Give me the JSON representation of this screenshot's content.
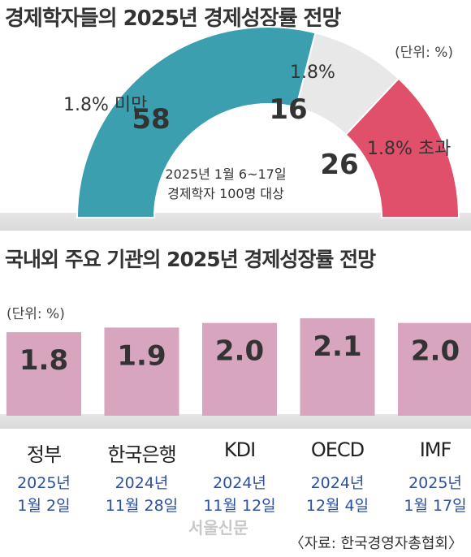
{
  "chart_data": [
    {
      "type": "pie",
      "title": "경제학자들의 2025년 경제성장률 전망",
      "unit": "(단위: %)",
      "note_lines": [
        "2025년 1월 6~17일",
        "경제학자 100명 대상"
      ],
      "slices": [
        {
          "label": "1.8% 미만",
          "value": 58,
          "color": "#3b9fb0"
        },
        {
          "label": "1.8%",
          "value": 16,
          "color": "#e8e8e8"
        },
        {
          "label": "1.8% 초과",
          "value": 26,
          "color": "#e0506a"
        }
      ]
    },
    {
      "type": "bar",
      "title": "국내외 주요 기관의 2025년 경제성장률 전망",
      "unit": "(단위: %)",
      "categories": [
        "정부",
        "한국은행",
        "KDI",
        "OECD",
        "IMF"
      ],
      "values": [
        1.8,
        1.9,
        2.0,
        2.1,
        2.0
      ],
      "value_labels": [
        "1.8",
        "1.9",
        "2.0",
        "2.1",
        "2.0"
      ],
      "dates": [
        [
          "2025년",
          "1월 2일"
        ],
        [
          "2024년",
          "11월 28일"
        ],
        [
          "2024년",
          "11월 12일"
        ],
        [
          "2024년",
          "12월 4일"
        ],
        [
          "2025년",
          "1월 17일"
        ]
      ],
      "bar_color": "#d7a6be",
      "ylim": [
        0,
        2.1
      ]
    }
  ],
  "source": "〈자료: 한국경영자총협회〉",
  "watermark": "서울신문"
}
